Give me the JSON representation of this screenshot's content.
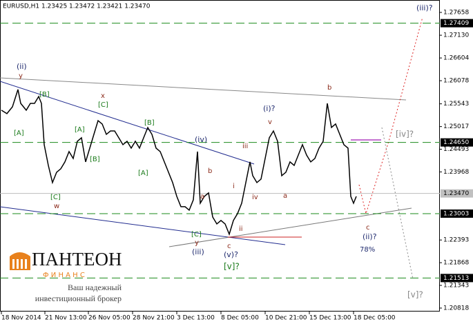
{
  "chart_data": {
    "type": "line",
    "title": "EURUSD,H1  1.23425 1.23472 1.23421 1.23470",
    "color": "#000000",
    "x": [
      2,
      10,
      18,
      26,
      30,
      38,
      44,
      50,
      56,
      60,
      64,
      70,
      76,
      82,
      88,
      94,
      100,
      106,
      112,
      118,
      124,
      130,
      136,
      142,
      148,
      154,
      160,
      166,
      172,
      178,
      184,
      190,
      196,
      202,
      208,
      214,
      220,
      226,
      232,
      238,
      244,
      250,
      256,
      262,
      268,
      274,
      280,
      286,
      290,
      296,
      302,
      308,
      314,
      320,
      326,
      332,
      338,
      344,
      350,
      356,
      362,
      366,
      372,
      378,
      384,
      390,
      396,
      402,
      408,
      414,
      420,
      426,
      432,
      438,
      444,
      450,
      456,
      462,
      468,
      474,
      480,
      486,
      492,
      498,
      504,
      508,
      512,
      516
    ],
    "values": [
      1.25395,
      1.25315,
      1.25474,
      1.25873,
      1.25554,
      1.25395,
      1.25554,
      1.25554,
      1.25713,
      1.25554,
      1.24598,
      1.24119,
      1.23721,
      1.2396,
      1.2404,
      1.24199,
      1.24438,
      1.24279,
      1.24677,
      1.24757,
      1.24199,
      1.24518,
      1.24837,
      1.25155,
      1.25076,
      1.24837,
      1.24916,
      1.24916,
      1.24757,
      1.24598,
      1.24677,
      1.24518,
      1.24677,
      1.24518,
      1.24757,
      1.24996,
      1.24837,
      1.24518,
      1.24438,
      1.24199,
      1.2396,
      1.23721,
      1.23402,
      1.23163,
      1.23163,
      1.23083,
      1.23322,
      1.24438,
      1.23243,
      1.23402,
      1.23482,
      1.22924,
      1.22764,
      1.22844,
      1.22764,
      1.22525,
      1.22844,
      1.23004,
      1.23243,
      1.23721,
      1.24199,
      1.2388,
      1.23721,
      1.23801,
      1.24279,
      1.24757,
      1.24916,
      1.24677,
      1.2388,
      1.2396,
      1.24199,
      1.24119,
      1.24358,
      1.24598,
      1.24358,
      1.24199,
      1.24279,
      1.24518,
      1.24677,
      1.25554,
      1.24996,
      1.25076,
      1.24837,
      1.24598,
      1.24518,
      1.23402,
      1.23243,
      1.23402
    ],
    "xlim": [
      0,
      637
    ],
    "xticks": [
      {
        "value": 2,
        "label": "18 Nov 2014"
      },
      {
        "value": 65,
        "label": "21 Nov 13:00"
      },
      {
        "value": 128,
        "label": "26 Nov 05:00"
      },
      {
        "value": 192,
        "label": "28 Nov 21:00"
      },
      {
        "value": 256,
        "label": "3 Dec 13:00"
      },
      {
        "value": 320,
        "label": "8 Dec 05:00"
      },
      {
        "value": 384,
        "label": "10 Dec 21:00"
      },
      {
        "value": 448,
        "label": "15 Dec 13:00"
      },
      {
        "value": 512,
        "label": "18 Dec 05:00"
      }
    ],
    "ylim": [
      1.20738,
      1.27945
    ],
    "yticks": [
      1.27658,
      {
        "value": 1.2713,
        "label": "1.27130"
      },
      1.26604,
      1.26078,
      1.25543,
      1.25017,
      1.24493,
      1.23968,
      1.22393,
      1.21868,
      1.21343,
      1.20818
    ],
    "levels": [
      1.27409,
      {
        "value": 1.2465,
        "label": "1.24650"
      },
      1.23003,
      1.21513
    ],
    "current_price": {
      "value": 1.2347,
      "label": "1.23470"
    },
    "annotations": [
      "(ii)",
      "y",
      "[B]",
      "[A]",
      "x",
      "[C]",
      "[A]",
      "[B]",
      "[B]",
      "[A]",
      "[C]",
      "w",
      "(iv)",
      "b",
      "a",
      "[C]",
      "y",
      "(iii)",
      "c",
      "(v)?",
      "[v]?",
      "ii",
      "i",
      "iii",
      "iv",
      "(i)?",
      "v",
      "a",
      "b",
      "c",
      "(ii)?",
      "78%",
      "[iv]?",
      "(iii)?",
      "[v]?"
    ]
  },
  "logo": {
    "name": "ПАНТЕОН",
    "sub": "Ф И Н А Н С",
    "tagline": [
      "Ваш надежный",
      "инвестиционный брокер"
    ]
  }
}
